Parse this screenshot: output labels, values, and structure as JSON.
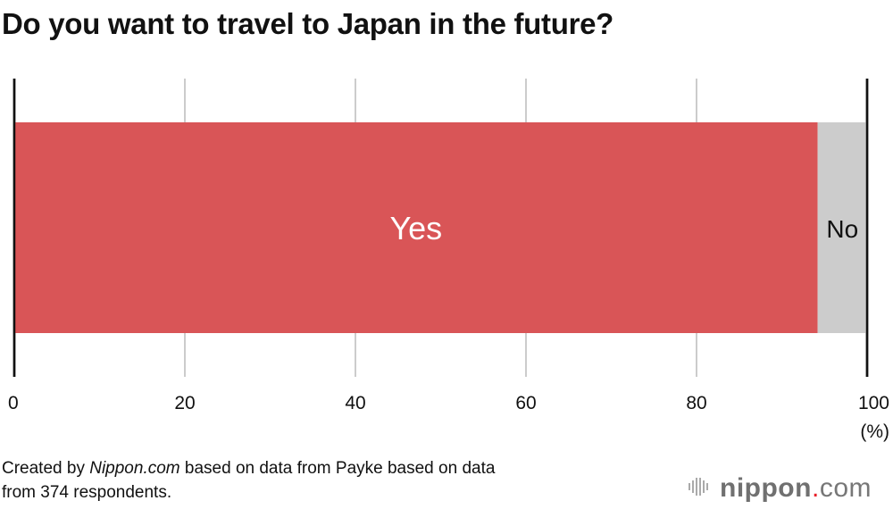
{
  "chart_data": {
    "type": "bar",
    "orientation": "horizontal-stacked",
    "title": "Do you want to travel to Japan in the future?",
    "series": [
      {
        "name": "Yes",
        "values": [
          94.2
        ],
        "color": "#d95557"
      },
      {
        "name": "No",
        "values": [
          5.8
        ],
        "color": "#cccccc"
      }
    ],
    "xlim": [
      0,
      100
    ],
    "xticks": [
      "0",
      "20",
      "40",
      "60",
      "80",
      "100"
    ],
    "xunit": "(%)",
    "grid": true
  },
  "footer": {
    "prefix": "Created by ",
    "source_italic": "Nippon.com",
    "rest_line1": " based on data from Payke based on data",
    "line2": "from 374 respondents."
  },
  "logo": {
    "text": "nippon.com"
  }
}
